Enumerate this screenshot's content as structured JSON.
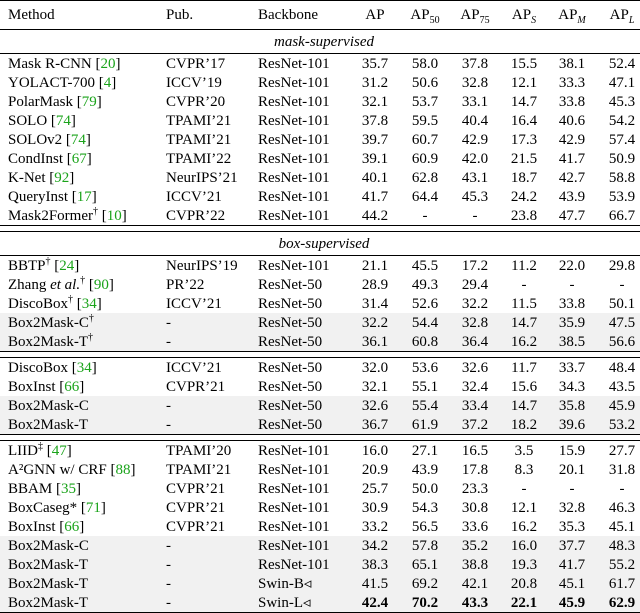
{
  "header": {
    "method": "Method",
    "pub": "Pub.",
    "backbone": "Backbone",
    "ap": "AP",
    "ap50": "AP",
    "ap50_sub": "50",
    "ap75": "AP",
    "ap75_sub": "75",
    "aps": "AP",
    "aps_sub": "S",
    "apm": "AP",
    "apm_sub": "M",
    "apl": "AP",
    "apl_sub": "L"
  },
  "sections": {
    "mask": "mask-supervised",
    "box": "box-supervised"
  },
  "rows": [
    {
      "name": "Mask R-CNN",
      "sup": "",
      "ref": "20",
      "pub": "CVPR’17",
      "backbone": "ResNet-101",
      "ap": "35.7",
      "ap50": "58.0",
      "ap75": "37.8",
      "aps": "15.5",
      "apm": "38.1",
      "apl": "52.4"
    },
    {
      "name": "YOLACT-700",
      "sup": "",
      "ref": "4",
      "pub": "ICCV’19",
      "backbone": "ResNet-101",
      "ap": "31.2",
      "ap50": "50.6",
      "ap75": "32.8",
      "aps": "12.1",
      "apm": "33.3",
      "apl": "47.1"
    },
    {
      "name": "PolarMask",
      "sup": "",
      "ref": "79",
      "pub": "CVPR’20",
      "backbone": "ResNet-101",
      "ap": "32.1",
      "ap50": "53.7",
      "ap75": "33.1",
      "aps": "14.7",
      "apm": "33.8",
      "apl": "45.3"
    },
    {
      "name": "SOLO",
      "sup": "",
      "ref": "74",
      "pub": "TPAMI’21",
      "backbone": "ResNet-101",
      "ap": "37.8",
      "ap50": "59.5",
      "ap75": "40.4",
      "aps": "16.4",
      "apm": "40.6",
      "apl": "54.2"
    },
    {
      "name": "SOLOv2",
      "sup": "",
      "ref": "74",
      "pub": "TPAMI’21",
      "backbone": "ResNet-101",
      "ap": "39.7",
      "ap50": "60.7",
      "ap75": "42.9",
      "aps": "17.3",
      "apm": "42.9",
      "apl": "57.4"
    },
    {
      "name": "CondInst",
      "sup": "",
      "ref": "67",
      "pub": "TPAMI’22",
      "backbone": "ResNet-101",
      "ap": "39.1",
      "ap50": "60.9",
      "ap75": "42.0",
      "aps": "21.5",
      "apm": "41.7",
      "apl": "50.9"
    },
    {
      "name": "K-Net",
      "sup": "",
      "ref": "92",
      "pub": "NeurIPS’21",
      "backbone": "ResNet-101",
      "ap": "40.1",
      "ap50": "62.8",
      "ap75": "43.1",
      "aps": "18.7",
      "apm": "42.7",
      "apl": "58.8"
    },
    {
      "name": "QueryInst",
      "sup": "",
      "ref": "17",
      "pub": "ICCV’21",
      "backbone": "ResNet-101",
      "ap": "41.7",
      "ap50": "64.4",
      "ap75": "45.3",
      "aps": "24.2",
      "apm": "43.9",
      "apl": "53.9"
    },
    {
      "name": "Mask2Former",
      "sup": "†",
      "ref": "10",
      "pub": "CVPR’22",
      "backbone": "ResNet-101",
      "ap": "44.2",
      "ap50": "-",
      "ap75": "-",
      "aps": "23.8",
      "apm": "47.7",
      "apl": "66.7"
    },
    {
      "name": "BBTP",
      "sup": "†",
      "ref": "24",
      "pub": "NeurIPS’19",
      "backbone": "ResNet-101",
      "ap": "21.1",
      "ap50": "45.5",
      "ap75": "17.2",
      "aps": "11.2",
      "apm": "22.0",
      "apl": "29.8"
    },
    {
      "name": "Zhang et al.",
      "sup": "†",
      "ref": "90",
      "pub": "PR’22",
      "backbone": "ResNet-50",
      "ap": "28.9",
      "ap50": "49.3",
      "ap75": "29.4",
      "aps": "-",
      "apm": "-",
      "apl": "-"
    },
    {
      "name": "DiscoBox",
      "sup": "†",
      "ref": "34",
      "pub": "ICCV’21",
      "backbone": "ResNet-50",
      "ap": "31.4",
      "ap50": "52.6",
      "ap75": "32.2",
      "aps": "11.5",
      "apm": "33.8",
      "apl": "50.1"
    },
    {
      "name": "Box2Mask-C",
      "sup": "†",
      "ref": "",
      "pub": "-",
      "backbone": "ResNet-50",
      "ap": "32.2",
      "ap50": "54.4",
      "ap75": "32.8",
      "aps": "14.7",
      "apm": "35.9",
      "apl": "47.5"
    },
    {
      "name": "Box2Mask-T",
      "sup": "†",
      "ref": "",
      "pub": "-",
      "backbone": "ResNet-50",
      "ap": "36.1",
      "ap50": "60.8",
      "ap75": "36.4",
      "aps": "16.2",
      "apm": "38.5",
      "apl": "56.6"
    },
    {
      "name": "DiscoBox",
      "sup": "",
      "ref": "34",
      "pub": "ICCV’21",
      "backbone": "ResNet-50",
      "ap": "32.0",
      "ap50": "53.6",
      "ap75": "32.6",
      "aps": "11.7",
      "apm": "33.7",
      "apl": "48.4"
    },
    {
      "name": "BoxInst",
      "sup": "",
      "ref": "66",
      "pub": "CVPR’21",
      "backbone": "ResNet-50",
      "ap": "32.1",
      "ap50": "55.1",
      "ap75": "32.4",
      "aps": "15.6",
      "apm": "34.3",
      "apl": "43.5"
    },
    {
      "name": "Box2Mask-C",
      "sup": "",
      "ref": "",
      "pub": "-",
      "backbone": "ResNet-50",
      "ap": "32.6",
      "ap50": "55.4",
      "ap75": "33.4",
      "aps": "14.7",
      "apm": "35.8",
      "apl": "45.9"
    },
    {
      "name": "Box2Mask-T",
      "sup": "",
      "ref": "",
      "pub": "-",
      "backbone": "ResNet-50",
      "ap": "36.7",
      "ap50": "61.9",
      "ap75": "37.2",
      "aps": "18.2",
      "apm": "39.6",
      "apl": "53.2"
    },
    {
      "name": "LIID",
      "sup": "‡",
      "ref": "47",
      "pub": "TPAMI’20",
      "backbone": "ResNet-101",
      "ap": "16.0",
      "ap50": "27.1",
      "ap75": "16.5",
      "aps": "3.5",
      "apm": "15.9",
      "apl": "27.7"
    },
    {
      "name": "A²GNN w/ CRF",
      "sup": "",
      "ref": "88",
      "pub": "TPAMI’21",
      "backbone": "ResNet-101",
      "ap": "20.9",
      "ap50": "43.9",
      "ap75": "17.8",
      "aps": "8.3",
      "apm": "20.1",
      "apl": "31.8"
    },
    {
      "name": "BBAM",
      "sup": "",
      "ref": "35",
      "pub": "CVPR’21",
      "backbone": "ResNet-101",
      "ap": "25.7",
      "ap50": "50.0",
      "ap75": "23.3",
      "aps": "-",
      "apm": "-",
      "apl": "-"
    },
    {
      "name": "BoxCaseg*",
      "sup": "",
      "ref": "71",
      "pub": "CVPR’21",
      "backbone": "ResNet-101",
      "ap": "30.9",
      "ap50": "54.3",
      "ap75": "30.8",
      "aps": "12.1",
      "apm": "32.8",
      "apl": "46.3"
    },
    {
      "name": "BoxInst",
      "sup": "",
      "ref": "66",
      "pub": "CVPR’21",
      "backbone": "ResNet-101",
      "ap": "33.2",
      "ap50": "56.5",
      "ap75": "33.6",
      "aps": "16.2",
      "apm": "35.3",
      "apl": "45.1"
    },
    {
      "name": "Box2Mask-C",
      "sup": "",
      "ref": "",
      "pub": "-",
      "backbone": "ResNet-101",
      "ap": "34.2",
      "ap50": "57.8",
      "ap75": "35.2",
      "aps": "16.0",
      "apm": "37.7",
      "apl": "48.3"
    },
    {
      "name": "Box2Mask-T",
      "sup": "",
      "ref": "",
      "pub": "-",
      "backbone": "ResNet-101",
      "ap": "38.3",
      "ap50": "65.1",
      "ap75": "38.8",
      "aps": "19.3",
      "apm": "41.7",
      "apl": "55.2"
    },
    {
      "name": "Box2Mask-T",
      "sup": "",
      "ref": "",
      "pub": "-",
      "backbone": "Swin-B◃",
      "ap": "41.5",
      "ap50": "69.2",
      "ap75": "42.1",
      "aps": "20.8",
      "apm": "45.1",
      "apl": "61.7"
    },
    {
      "name": "Box2Mask-T",
      "sup": "",
      "ref": "",
      "pub": "-",
      "backbone": "Swin-L◃",
      "ap": "42.4",
      "ap50": "70.2",
      "ap75": "43.3",
      "aps": "22.1",
      "apm": "45.9",
      "apl": "62.9"
    }
  ]
}
